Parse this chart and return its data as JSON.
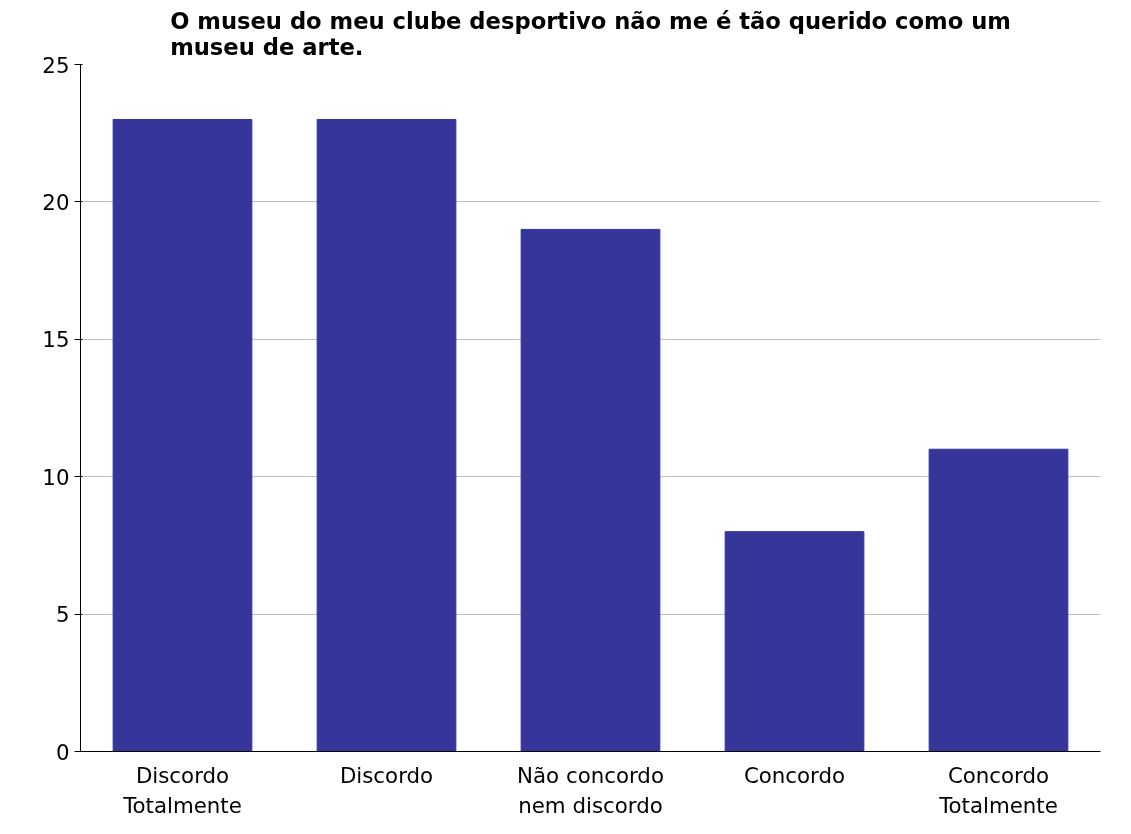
{
  "chart_data": {
    "type": "bar",
    "title": "O museu do meu clube desportivo não me é tão querido como um museu de arte.",
    "categories": [
      "Discordo Totalmente",
      "Discordo",
      "Não concordo nem discordo",
      "Concordo",
      "Concordo Totalmente"
    ],
    "values": [
      23,
      23,
      19,
      8,
      11
    ],
    "color": "#35359a",
    "ylim": [
      0,
      25
    ],
    "yticks": [
      0,
      5,
      10,
      15,
      20,
      25
    ],
    "grid": "y"
  }
}
